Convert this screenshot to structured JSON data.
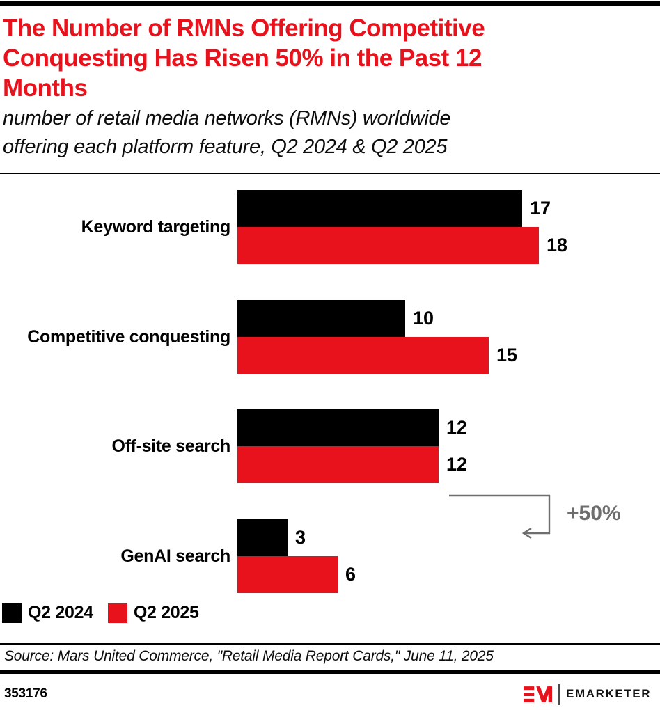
{
  "header": {
    "title": "The Number of RMNs Offering Competitive\nConquesting Has Risen 50% in the Past 12\nMonths",
    "subtitle": "number of retail media networks (RMNs) worldwide\noffering each platform feature, Q2 2024 & Q2 2025"
  },
  "chart_data": {
    "type": "bar",
    "orientation": "horizontal",
    "categories": [
      "Keyword targeting",
      "Competitive conquesting",
      "Off-site search",
      "GenAI search"
    ],
    "series": [
      {
        "name": "Q2 2024",
        "color": "#000000",
        "values": [
          17,
          10,
          12,
          3
        ]
      },
      {
        "name": "Q2 2025",
        "color": "#E8121C",
        "values": [
          18,
          15,
          12,
          6
        ]
      }
    ],
    "value_labels_shown": true,
    "axis": {
      "shown": false,
      "max": 18
    },
    "annotation": {
      "label": "+50%",
      "category": "Competitive conquesting",
      "from_value": 10,
      "to_value": 15,
      "color": "#6E6E6E"
    },
    "legend_position": "bottom-left"
  },
  "legend": [
    {
      "label": "Q2 2024",
      "color": "#000000"
    },
    {
      "label": "Q2 2025",
      "color": "#E8121C"
    }
  ],
  "footer": {
    "source": "Source: Mars United Commerce, \"Retail Media Report Cards,\" June 11, 2025",
    "chart_id": "353176",
    "logo_text": "EMARKETER"
  },
  "colors": {
    "title_red": "#E8121C",
    "bar_black": "#000000",
    "bar_red": "#E8121C",
    "annotation_gray": "#6E6E6E"
  }
}
